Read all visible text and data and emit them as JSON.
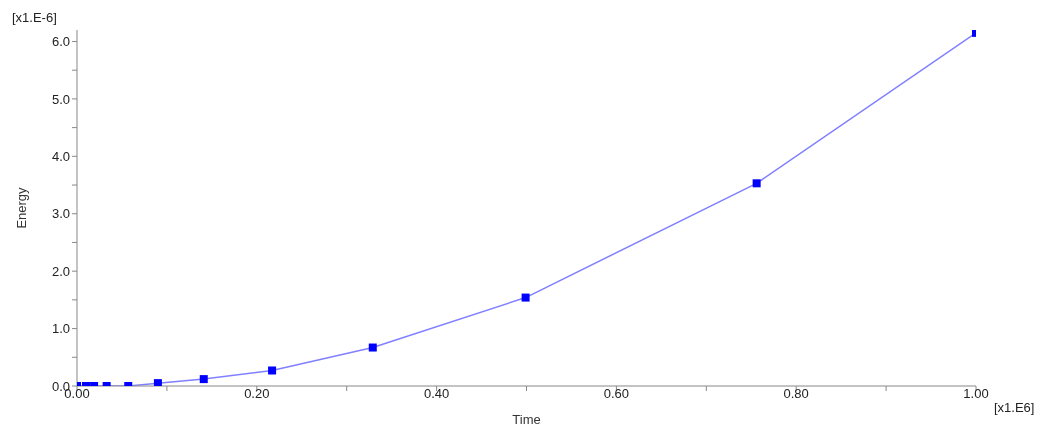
{
  "chart_data": {
    "type": "line",
    "xlabel": "Time",
    "ylabel": "Energy",
    "x": [
      0,
      0.01,
      0.019,
      0.033,
      0.057,
      0.09,
      0.141,
      0.217,
      0.329,
      0.499,
      0.756,
      1.0
    ],
    "series": [
      {
        "color": "#0000ff",
        "values": [
          0,
          0,
          0,
          0,
          0,
          0.05,
          0.12,
          0.27,
          0.67,
          1.54,
          3.53,
          6.15
        ]
      }
    ],
    "xlim": [
      0,
      1.0
    ],
    "ylim": [
      0,
      6.2
    ],
    "xticks": [
      {
        "value": 0,
        "label": "0.00"
      },
      {
        "value": 0.1,
        "label": null
      },
      {
        "value": 0.2,
        "label": "0.20"
      },
      {
        "value": 0.3,
        "label": null
      },
      {
        "value": 0.4,
        "label": "0.40"
      },
      {
        "value": 0.5,
        "label": null
      },
      {
        "value": 0.6,
        "label": "0.60"
      },
      {
        "value": 0.7,
        "label": null
      },
      {
        "value": 0.8,
        "label": "0.80"
      },
      {
        "value": 0.9,
        "label": null
      },
      {
        "value": 1.0,
        "label": "1.00"
      }
    ],
    "yticks": [
      {
        "value": 0,
        "label": "0.0"
      },
      {
        "value": 0.5,
        "label": null
      },
      {
        "value": 1,
        "label": "1.0"
      },
      {
        "value": 1.5,
        "label": null
      },
      {
        "value": 2,
        "label": "2.0"
      },
      {
        "value": 2.5,
        "label": null
      },
      {
        "value": 3,
        "label": "3.0"
      },
      {
        "value": 3.5,
        "label": null
      },
      {
        "value": 4,
        "label": "4.0"
      },
      {
        "value": 4.5,
        "label": null
      },
      {
        "value": 5,
        "label": "5.0"
      },
      {
        "value": 5.5,
        "label": null
      },
      {
        "value": 6,
        "label": "6.0"
      }
    ],
    "annotations": [
      "[x1.E-6]",
      "[x1.E6]"
    ],
    "marker": "square",
    "line_style": "solid",
    "grid": false,
    "legend": false
  }
}
